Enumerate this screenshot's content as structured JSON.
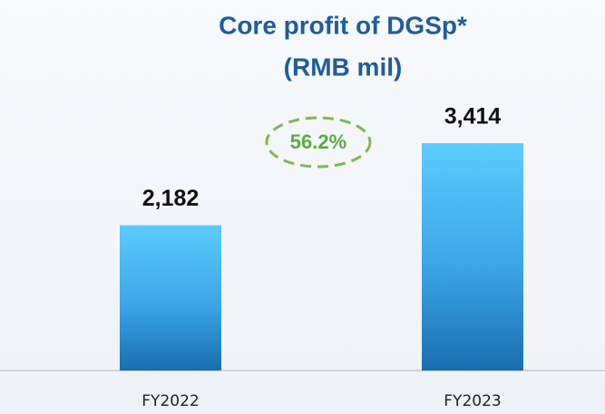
{
  "chart_data": {
    "type": "bar",
    "title": "Core profit of DGSp*",
    "subtitle": "(RMB mil)",
    "categories": [
      "FY2022",
      "FY2023"
    ],
    "values": [
      2182,
      3414
    ],
    "value_labels": [
      "2,182",
      "3,414"
    ],
    "color": "#3aa6e6",
    "annotation": "56.2%"
  }
}
